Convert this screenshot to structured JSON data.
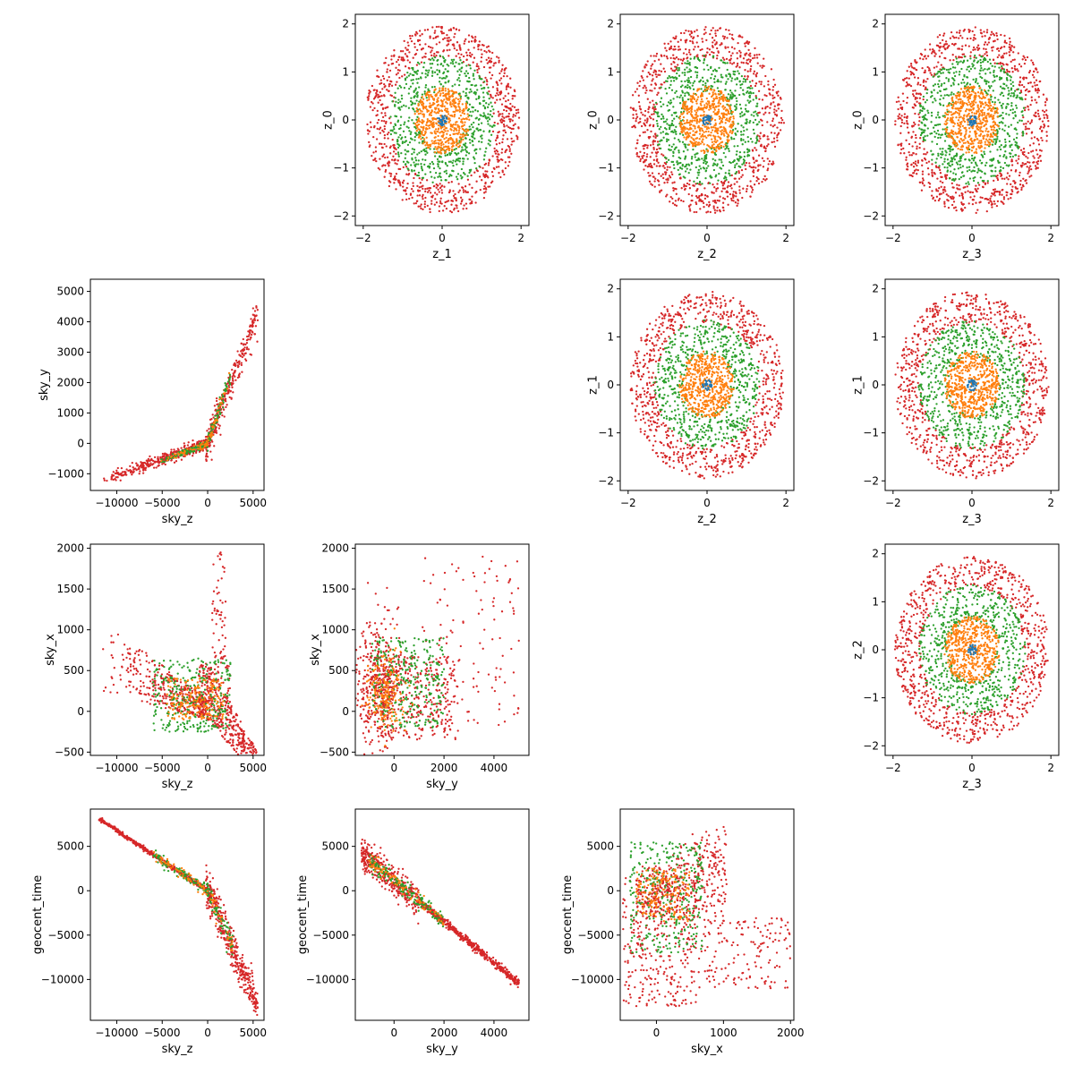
{
  "figure": {
    "type": "scatter-matrix",
    "series_colors": [
      "#1f77b4",
      "#ff7f0e",
      "#2ca02c",
      "#d62728"
    ]
  },
  "chart_data": [
    {
      "id": "z1-z0",
      "type": "scatter",
      "xlabel": "z_1",
      "ylabel": "z_0",
      "xlim": [
        -2.2,
        2.2
      ],
      "ylim": [
        -2.2,
        2.2
      ],
      "xticks": [
        -2,
        0,
        2
      ],
      "xticklabels": [
        "−2",
        "0",
        "2"
      ],
      "yticks": [
        -2,
        -1,
        0,
        1,
        2
      ],
      "yticklabels": [
        "−2",
        "−1",
        "0",
        "1",
        "2"
      ],
      "pattern": "rings",
      "series": [
        {
          "color": "#d62728",
          "count": 820,
          "r_min": 1.3,
          "r_max": 1.95
        },
        {
          "color": "#2ca02c",
          "count": 620,
          "r_min": 0.6,
          "r_max": 1.35
        },
        {
          "color": "#ff7f0e",
          "count": 520,
          "r_min": 0.0,
          "r_max": 0.7
        },
        {
          "color": "#1f77b4",
          "count": 30,
          "r_min": 0.0,
          "r_max": 0.12
        }
      ]
    },
    {
      "id": "z2-z0",
      "type": "scatter",
      "xlabel": "z_2",
      "ylabel": "z_0",
      "xlim": [
        -2.2,
        2.2
      ],
      "ylim": [
        -2.2,
        2.2
      ],
      "xticks": [
        -2,
        0,
        2
      ],
      "xticklabels": [
        "−2",
        "0",
        "2"
      ],
      "yticks": [
        -2,
        -1,
        0,
        1,
        2
      ],
      "yticklabels": [
        "−2",
        "−1",
        "0",
        "1",
        "2"
      ],
      "pattern": "rings",
      "series": [
        {
          "color": "#d62728",
          "count": 820,
          "r_min": 1.3,
          "r_max": 1.95
        },
        {
          "color": "#2ca02c",
          "count": 620,
          "r_min": 0.6,
          "r_max": 1.35
        },
        {
          "color": "#ff7f0e",
          "count": 520,
          "r_min": 0.0,
          "r_max": 0.7
        },
        {
          "color": "#1f77b4",
          "count": 30,
          "r_min": 0.0,
          "r_max": 0.12
        }
      ]
    },
    {
      "id": "z3-z0",
      "type": "scatter",
      "xlabel": "z_3",
      "ylabel": "z_0",
      "xlim": [
        -2.2,
        2.2
      ],
      "ylim": [
        -2.2,
        2.2
      ],
      "xticks": [
        -2,
        0,
        2
      ],
      "xticklabels": [
        "−2",
        "0",
        "2"
      ],
      "yticks": [
        -2,
        -1,
        0,
        1,
        2
      ],
      "yticklabels": [
        "−2",
        "−1",
        "0",
        "1",
        "2"
      ],
      "pattern": "rings",
      "series": [
        {
          "color": "#d62728",
          "count": 820,
          "r_min": 1.3,
          "r_max": 1.95
        },
        {
          "color": "#2ca02c",
          "count": 620,
          "r_min": 0.6,
          "r_max": 1.35
        },
        {
          "color": "#ff7f0e",
          "count": 520,
          "r_min": 0.0,
          "r_max": 0.7
        },
        {
          "color": "#1f77b4",
          "count": 30,
          "r_min": 0.0,
          "r_max": 0.12
        }
      ]
    },
    {
      "id": "skyz-skyy",
      "type": "scatter",
      "xlabel": "sky_z",
      "ylabel": "sky_y",
      "xlim": [
        -12900,
        6200
      ],
      "ylim": [
        -1550,
        5400
      ],
      "xticks": [
        -10000,
        -5000,
        0,
        5000
      ],
      "xticklabels": [
        "−10000",
        "−5000",
        "0",
        "5000"
      ],
      "yticks": [
        -1000,
        0,
        1000,
        2000,
        3000,
        4000,
        5000
      ],
      "yticklabels": [
        "−1000",
        "0",
        "1000",
        "2000",
        "3000",
        "4000",
        "5000"
      ],
      "pattern": "curve-knee",
      "series": [
        {
          "color": "#d62728",
          "count": 700
        },
        {
          "color": "#2ca02c",
          "count": 220
        },
        {
          "color": "#ff7f0e",
          "count": 80
        }
      ]
    },
    {
      "id": "z2-z1",
      "type": "scatter",
      "xlabel": "z_2",
      "ylabel": "z_1",
      "xlim": [
        -2.2,
        2.2
      ],
      "ylim": [
        -2.2,
        2.2
      ],
      "xticks": [
        -2,
        0,
        2
      ],
      "xticklabels": [
        "−2",
        "0",
        "2"
      ],
      "yticks": [
        -2,
        -1,
        0,
        1,
        2
      ],
      "yticklabels": [
        "−2",
        "−1",
        "0",
        "1",
        "2"
      ],
      "pattern": "rings",
      "series": [
        {
          "color": "#d62728",
          "count": 820,
          "r_min": 1.3,
          "r_max": 1.95
        },
        {
          "color": "#2ca02c",
          "count": 620,
          "r_min": 0.6,
          "r_max": 1.35
        },
        {
          "color": "#ff7f0e",
          "count": 520,
          "r_min": 0.0,
          "r_max": 0.7
        },
        {
          "color": "#1f77b4",
          "count": 30,
          "r_min": 0.0,
          "r_max": 0.12
        }
      ]
    },
    {
      "id": "z3-z1",
      "type": "scatter",
      "xlabel": "z_3",
      "ylabel": "z_1",
      "xlim": [
        -2.2,
        2.2
      ],
      "ylim": [
        -2.2,
        2.2
      ],
      "xticks": [
        -2,
        0,
        2
      ],
      "xticklabels": [
        "−2",
        "0",
        "2"
      ],
      "yticks": [
        -2,
        -1,
        0,
        1,
        2
      ],
      "yticklabels": [
        "−2",
        "−1",
        "0",
        "1",
        "2"
      ],
      "pattern": "rings",
      "series": [
        {
          "color": "#d62728",
          "count": 820,
          "r_min": 1.3,
          "r_max": 1.95
        },
        {
          "color": "#2ca02c",
          "count": 620,
          "r_min": 0.6,
          "r_max": 1.35
        },
        {
          "color": "#ff7f0e",
          "count": 520,
          "r_min": 0.0,
          "r_max": 0.7
        },
        {
          "color": "#1f77b4",
          "count": 30,
          "r_min": 0.0,
          "r_max": 0.12
        }
      ]
    },
    {
      "id": "skyz-skyx",
      "type": "scatter",
      "xlabel": "sky_z",
      "ylabel": "sky_x",
      "xlim": [
        -12900,
        6200
      ],
      "ylim": [
        -540,
        2050
      ],
      "xticks": [
        -10000,
        -5000,
        0,
        5000
      ],
      "xticklabels": [
        "−10000",
        "−5000",
        "0",
        "5000"
      ],
      "yticks": [
        -500,
        0,
        500,
        1000,
        1500,
        2000
      ],
      "yticklabels": [
        "−500",
        "0",
        "500",
        "1000",
        "1500",
        "2000"
      ],
      "pattern": "wedge",
      "series": [
        {
          "color": "#d62728",
          "count": 900
        },
        {
          "color": "#2ca02c",
          "count": 300
        },
        {
          "color": "#ff7f0e",
          "count": 180
        }
      ]
    },
    {
      "id": "skyy-skyx",
      "type": "scatter",
      "xlabel": "sky_y",
      "ylabel": "sky_x",
      "xlim": [
        -1550,
        5400
      ],
      "ylim": [
        -540,
        2050
      ],
      "xticks": [
        0,
        2000,
        4000
      ],
      "xticklabels": [
        "0",
        "2000",
        "4000"
      ],
      "yticks": [
        -500,
        0,
        500,
        1000,
        1500,
        2000
      ],
      "yticklabels": [
        "−500",
        "0",
        "500",
        "1000",
        "1500",
        "2000"
      ],
      "pattern": "cloud",
      "series": [
        {
          "color": "#d62728",
          "count": 850
        },
        {
          "color": "#2ca02c",
          "count": 300
        },
        {
          "color": "#ff7f0e",
          "count": 180
        }
      ]
    },
    {
      "id": "z3-z2",
      "type": "scatter",
      "xlabel": "z_3",
      "ylabel": "z_2",
      "xlim": [
        -2.2,
        2.2
      ],
      "ylim": [
        -2.2,
        2.2
      ],
      "xticks": [
        -2,
        0,
        2
      ],
      "xticklabels": [
        "−2",
        "0",
        "2"
      ],
      "yticks": [
        -2,
        -1,
        0,
        1,
        2
      ],
      "yticklabels": [
        "−2",
        "−1",
        "0",
        "1",
        "2"
      ],
      "pattern": "rings",
      "series": [
        {
          "color": "#d62728",
          "count": 820,
          "r_min": 1.3,
          "r_max": 1.95
        },
        {
          "color": "#2ca02c",
          "count": 620,
          "r_min": 0.6,
          "r_max": 1.35
        },
        {
          "color": "#ff7f0e",
          "count": 520,
          "r_min": 0.0,
          "r_max": 0.7
        },
        {
          "color": "#1f77b4",
          "count": 30,
          "r_min": 0.0,
          "r_max": 0.12
        }
      ]
    },
    {
      "id": "skyz-geocent",
      "type": "scatter",
      "xlabel": "sky_z",
      "ylabel": "geocent_time",
      "xlim": [
        -12900,
        6200
      ],
      "ylim": [
        -14600,
        9200
      ],
      "xticks": [
        -10000,
        -5000,
        0,
        5000
      ],
      "xticklabels": [
        "−10000",
        "−5000",
        "0",
        "5000"
      ],
      "yticks": [
        -10000,
        -5000,
        0,
        5000
      ],
      "yticklabels": [
        "−10000",
        "−5000",
        "0",
        "5000"
      ],
      "pattern": "line-bend",
      "series": [
        {
          "color": "#d62728",
          "count": 900
        },
        {
          "color": "#2ca02c",
          "count": 160
        },
        {
          "color": "#ff7f0e",
          "count": 80
        }
      ]
    },
    {
      "id": "skyy-geocent",
      "type": "scatter",
      "xlabel": "sky_y",
      "ylabel": "geocent_time",
      "xlim": [
        -1550,
        5400
      ],
      "ylim": [
        -14600,
        9200
      ],
      "xticks": [
        0,
        2000,
        4000
      ],
      "xticklabels": [
        "0",
        "2000",
        "4000"
      ],
      "yticks": [
        -10000,
        -5000,
        0,
        5000
      ],
      "yticklabels": [
        "−10000",
        "−5000",
        "0",
        "5000"
      ],
      "pattern": "line-diag",
      "series": [
        {
          "color": "#d62728",
          "count": 900
        },
        {
          "color": "#2ca02c",
          "count": 160
        },
        {
          "color": "#ff7f0e",
          "count": 80
        }
      ]
    },
    {
      "id": "skyx-geocent",
      "type": "scatter",
      "xlabel": "sky_x",
      "ylabel": "geocent_time",
      "xlim": [
        -540,
        2050
      ],
      "ylim": [
        -14600,
        9200
      ],
      "xticks": [
        0,
        1000,
        2000
      ],
      "xticklabels": [
        "0",
        "1000",
        "2000"
      ],
      "yticks": [
        -10000,
        -5000,
        0,
        5000
      ],
      "yticklabels": [
        "−10000",
        "−5000",
        "0",
        "5000"
      ],
      "pattern": "fan",
      "series": [
        {
          "color": "#d62728",
          "count": 900
        },
        {
          "color": "#2ca02c",
          "count": 320
        },
        {
          "color": "#ff7f0e",
          "count": 160
        }
      ]
    }
  ]
}
